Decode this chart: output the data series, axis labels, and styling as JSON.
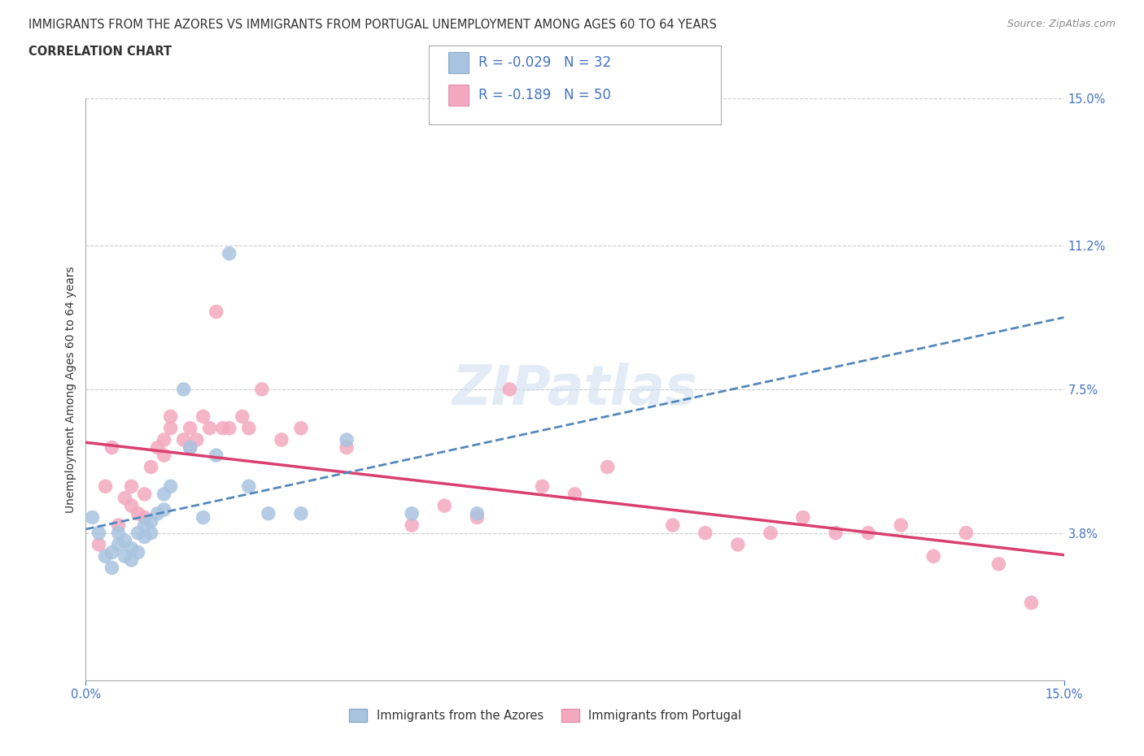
{
  "title_line1": "IMMIGRANTS FROM THE AZORES VS IMMIGRANTS FROM PORTUGAL UNEMPLOYMENT AMONG AGES 60 TO 64 YEARS",
  "title_line2": "CORRELATION CHART",
  "source_text": "Source: ZipAtlas.com",
  "ylabel": "Unemployment Among Ages 60 to 64 years",
  "xmin": 0.0,
  "xmax": 0.15,
  "ymin": 0.0,
  "ymax": 0.15,
  "ytick_labels_right": [
    "15.0%",
    "11.2%",
    "7.5%",
    "3.8%"
  ],
  "ytick_values_right": [
    0.15,
    0.112,
    0.075,
    0.038
  ],
  "legend_bottom_labels": [
    "Immigrants from the Azores",
    "Immigrants from Portugal"
  ],
  "legend_top": {
    "R1": "-0.029",
    "N1": "32",
    "R2": "-0.189",
    "N2": "50"
  },
  "color_azores": "#a8c4e0",
  "color_portugal": "#f4a8c0",
  "color_azores_line": "#7aafd4",
  "color_portugal_line": "#f090b0",
  "color_line_azores": "#5588bb",
  "color_line_portugal": "#d94070",
  "color_axis": "#4472c4",
  "watermark_text": "ZIPatlas",
  "azores_x": [
    0.001,
    0.002,
    0.003,
    0.004,
    0.004,
    0.005,
    0.005,
    0.006,
    0.006,
    0.007,
    0.007,
    0.008,
    0.008,
    0.009,
    0.009,
    0.01,
    0.01,
    0.011,
    0.012,
    0.012,
    0.013,
    0.015,
    0.016,
    0.018,
    0.02,
    0.022,
    0.025,
    0.028,
    0.033,
    0.04,
    0.05,
    0.06
  ],
  "azores_y": [
    0.042,
    0.038,
    0.032,
    0.029,
    0.033,
    0.038,
    0.035,
    0.036,
    0.032,
    0.031,
    0.034,
    0.033,
    0.038,
    0.04,
    0.037,
    0.041,
    0.038,
    0.043,
    0.044,
    0.048,
    0.05,
    0.075,
    0.06,
    0.042,
    0.058,
    0.11,
    0.05,
    0.043,
    0.043,
    0.062,
    0.043,
    0.043
  ],
  "portugal_x": [
    0.002,
    0.003,
    0.004,
    0.005,
    0.006,
    0.007,
    0.007,
    0.008,
    0.009,
    0.009,
    0.01,
    0.011,
    0.012,
    0.012,
    0.013,
    0.013,
    0.015,
    0.016,
    0.016,
    0.017,
    0.018,
    0.019,
    0.02,
    0.021,
    0.022,
    0.024,
    0.025,
    0.027,
    0.03,
    0.033,
    0.04,
    0.05,
    0.055,
    0.06,
    0.065,
    0.07,
    0.075,
    0.08,
    0.09,
    0.095,
    0.1,
    0.105,
    0.11,
    0.115,
    0.12,
    0.125,
    0.13,
    0.135,
    0.14,
    0.145
  ],
  "portugal_y": [
    0.035,
    0.05,
    0.06,
    0.04,
    0.047,
    0.045,
    0.05,
    0.043,
    0.042,
    0.048,
    0.055,
    0.06,
    0.062,
    0.058,
    0.065,
    0.068,
    0.062,
    0.06,
    0.065,
    0.062,
    0.068,
    0.065,
    0.095,
    0.065,
    0.065,
    0.068,
    0.065,
    0.075,
    0.062,
    0.065,
    0.06,
    0.04,
    0.045,
    0.042,
    0.075,
    0.05,
    0.048,
    0.055,
    0.04,
    0.038,
    0.035,
    0.038,
    0.042,
    0.038,
    0.038,
    0.04,
    0.032,
    0.038,
    0.03,
    0.02
  ]
}
